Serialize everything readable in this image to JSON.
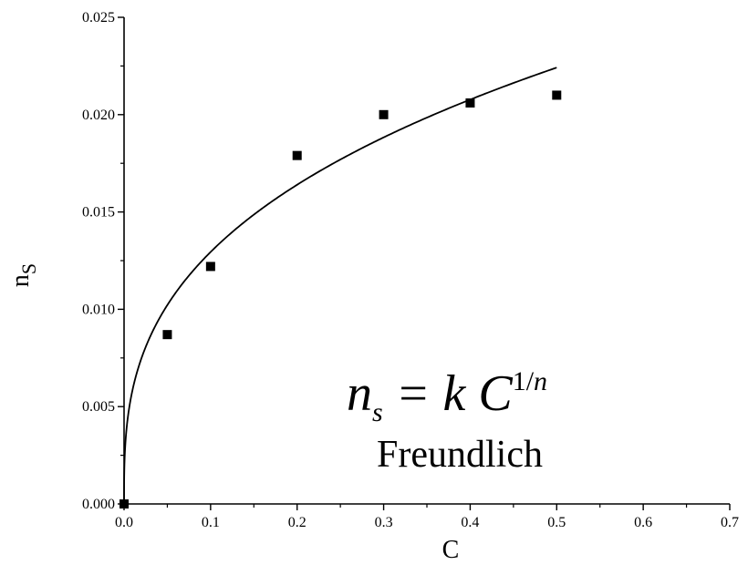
{
  "chart_data": {
    "type": "scatter",
    "title": "",
    "xlabel": "C",
    "ylabel_main": "n",
    "ylabel_sub": "S",
    "xlim": [
      0,
      0.7
    ],
    "ylim": [
      0,
      0.025
    ],
    "x_ticks": [
      "0.0",
      "0.1",
      "0.2",
      "0.3",
      "0.4",
      "0.5",
      "0.6",
      "0.7"
    ],
    "y_ticks": [
      "0.000",
      "0.005",
      "0.010",
      "0.015",
      "0.020",
      "0.025"
    ],
    "grid": false,
    "series": [
      {
        "kind": "points",
        "marker": "square",
        "x": [
          0.0,
          0.05,
          0.1,
          0.2,
          0.3,
          0.4,
          0.5
        ],
        "y": [
          0.0,
          0.0087,
          0.0122,
          0.0179,
          0.02,
          0.0206,
          0.021
        ]
      },
      {
        "kind": "fit-line",
        "model": "freundlich",
        "k": 0.0284,
        "n": 2.93,
        "x_range": [
          0,
          0.5
        ]
      }
    ],
    "annotation": {
      "eq_left": "n",
      "eq_left_sub": "s",
      "eq_mid": " = k C",
      "eq_exp_1": "1/",
      "eq_exp_2": "n",
      "model_name": "Freundlich"
    }
  }
}
